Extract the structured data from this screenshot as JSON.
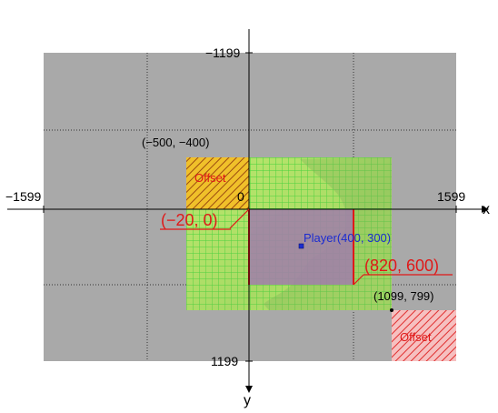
{
  "axes": {
    "x_label": "x",
    "y_label": "y",
    "x_min_label": "−1599",
    "x_max_label": "1599",
    "y_min_label": "−1199",
    "y_max_label": "1199",
    "origin_label": "0"
  },
  "points": {
    "world_top_left": "(−500, −400)",
    "world_bottom_right": "(1099, 799)",
    "view_top_left": "(−20, 0)",
    "view_bottom_right": "(820, 600)",
    "player": "Player(400, 300)"
  },
  "offset_labels": {
    "top_left": "Offset",
    "bottom_right": "Offset"
  },
  "colors": {
    "world_gray": "#a9a9a9",
    "map_green": "#b4e36a",
    "grid_green": "#2fd22f",
    "view_purple": "#a080a8",
    "accent_red": "#e01818",
    "player_blue": "#1c2cd0",
    "axis_black": "#000000"
  }
}
